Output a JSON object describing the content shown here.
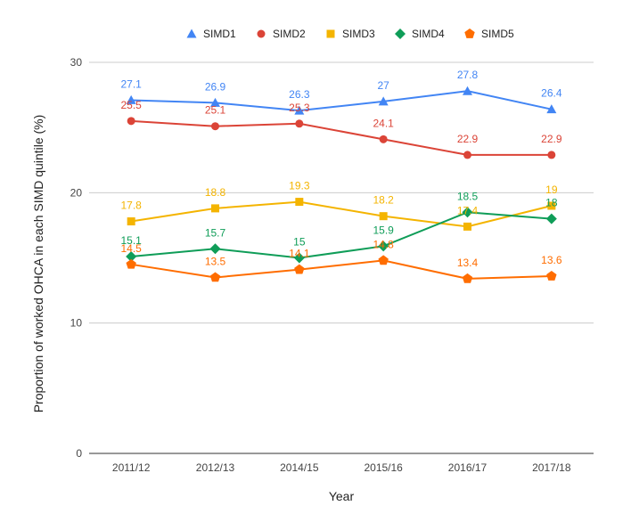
{
  "chart_data": {
    "type": "line",
    "title": "",
    "xlabel": "Year",
    "ylabel": "Proportion of worked OHCA in each SIMD quintile (%)",
    "categories": [
      "2011/12",
      "2012/13",
      "2014/15",
      "2015/16",
      "2016/17",
      "2017/18"
    ],
    "ylim": [
      0,
      30
    ],
    "yticks": [
      0,
      10,
      20,
      30
    ],
    "grid": true,
    "legend_position": "top",
    "series": [
      {
        "name": "SIMD1",
        "color": "#4285F4",
        "marker": "triangle",
        "values": [
          27.1,
          26.9,
          26.3,
          27,
          27.8,
          26.4
        ]
      },
      {
        "name": "SIMD2",
        "color": "#DB4437",
        "marker": "circle",
        "values": [
          25.5,
          25.1,
          25.3,
          24.1,
          22.9,
          22.9
        ]
      },
      {
        "name": "SIMD3",
        "color": "#F4B400",
        "marker": "square",
        "values": [
          17.8,
          18.8,
          19.3,
          18.2,
          17.4,
          19
        ]
      },
      {
        "name": "SIMD4",
        "color": "#0F9D58",
        "marker": "diamond",
        "values": [
          15.1,
          15.7,
          15,
          15.9,
          18.5,
          18
        ]
      },
      {
        "name": "SIMD5",
        "color": "#FF6D00",
        "marker": "pentagon",
        "values": [
          14.5,
          13.5,
          14.1,
          14.8,
          13.4,
          13.6
        ]
      }
    ]
  }
}
